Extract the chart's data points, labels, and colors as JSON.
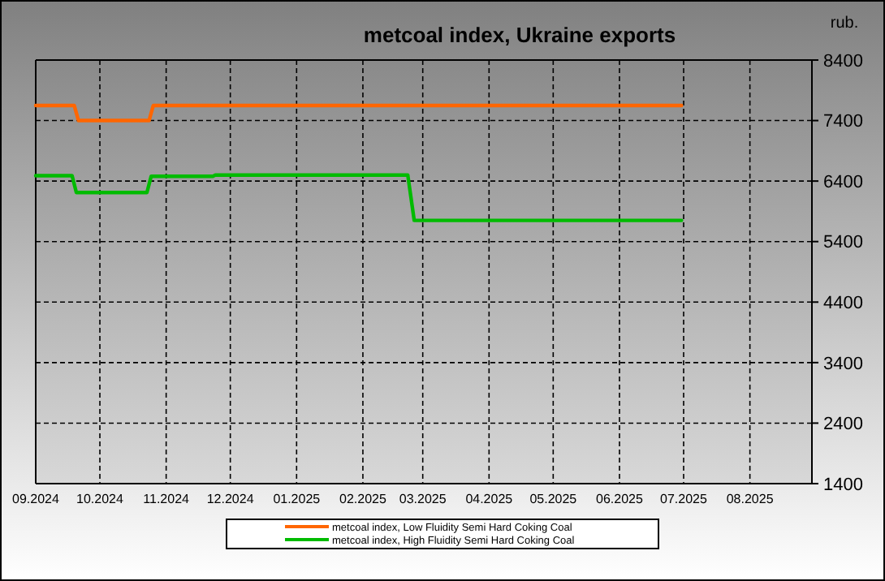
{
  "chart_data": {
    "type": "line",
    "title": "metcoal index, Ukraine exports",
    "ylabel": "rub.",
    "series": [
      {
        "name": "metcoal index, Low Fluidity Semi Hard Coking Coal",
        "color": "#ff6600",
        "x": [
          "2024-09-01",
          "2024-09-19",
          "2024-09-21",
          "2024-10-24",
          "2024-10-26",
          "2025-06-30"
        ],
        "values": [
          7650,
          7650,
          7400,
          7400,
          7650,
          7650
        ]
      },
      {
        "name": "metcoal index, High Fluidity Semi Hard Coking Coal",
        "color": "#00bb00",
        "x": [
          "2024-09-01",
          "2024-09-18",
          "2024-09-20",
          "2024-10-23",
          "2024-10-25",
          "2024-11-23",
          "2024-11-24",
          "2025-02-22",
          "2025-02-25",
          "2025-06-30"
        ],
        "values": [
          6490,
          6490,
          6210,
          6210,
          6480,
          6480,
          6500,
          6500,
          5750,
          5750
        ]
      }
    ],
    "xlim": [
      "2024-09-01",
      "2025-08-30"
    ],
    "xticks": [
      {
        "value": "2024-09-01",
        "label": "09.2024"
      },
      {
        "value": "2024-10-01",
        "label": "10.2024"
      },
      {
        "value": "2024-11-01",
        "label": "11.2024"
      },
      {
        "value": "2024-12-01",
        "label": "12.2024"
      },
      {
        "value": "2025-01-01",
        "label": "01.2025"
      },
      {
        "value": "2025-02-01",
        "label": "02.2025"
      },
      {
        "value": "2025-03-01",
        "label": "03.2025"
      },
      {
        "value": "2025-04-01",
        "label": "04.2025"
      },
      {
        "value": "2025-05-01",
        "label": "05.2025"
      },
      {
        "value": "2025-06-01",
        "label": "06.2025"
      },
      {
        "value": "2025-07-01",
        "label": "07.2025"
      },
      {
        "value": "2025-08-01",
        "label": "08.2025"
      }
    ],
    "ylim": [
      1400,
      8400
    ],
    "yticks": [
      1400,
      2400,
      3400,
      4400,
      5400,
      6400,
      7400,
      8400
    ],
    "grid": true,
    "legend": "bottom",
    "line_style": "solid",
    "marker": "none"
  }
}
